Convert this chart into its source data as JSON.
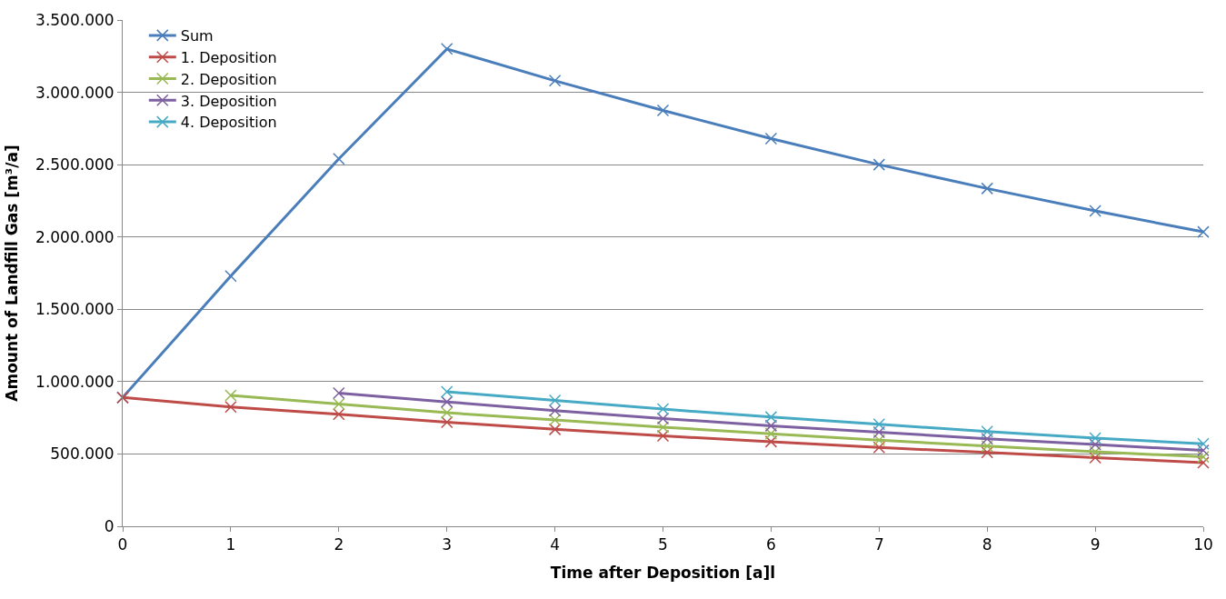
{
  "chart_data": {
    "type": "line",
    "xlabel": "Time after Deposition [a]l",
    "ylabel": "Amount of Landfill Gas [m³/a]",
    "x": [
      0,
      1,
      2,
      3,
      4,
      5,
      6,
      7,
      8,
      9,
      10
    ],
    "xlim": [
      0,
      10
    ],
    "xticks": [
      0,
      1,
      2,
      3,
      4,
      5,
      6,
      7,
      8,
      9,
      10
    ],
    "ylim": [
      0,
      3500000
    ],
    "yticks": [
      {
        "value": 0,
        "label": "0"
      },
      {
        "value": 500000,
        "label": "500.000"
      },
      {
        "value": 1000000,
        "label": "1.000.000"
      },
      {
        "value": 1500000,
        "label": "1.500.000"
      },
      {
        "value": 2000000,
        "label": "2.000.000"
      },
      {
        "value": 2500000,
        "label": "2.500.000"
      },
      {
        "value": 3000000,
        "label": "3.000.000"
      },
      {
        "value": 3500000,
        "label": "3.500.000"
      }
    ],
    "grid": "y",
    "legend": "top left",
    "marker": "cross",
    "line_style": "solid",
    "series": [
      {
        "name": "Sum",
        "color": "#4a7ebb",
        "values": [
          890000,
          1730000,
          2540000,
          3300000,
          3080000,
          2875000,
          2680000,
          2500000,
          2335000,
          2180000,
          2035000
        ]
      },
      {
        "name": "1. Deposition",
        "color": "#be4b48",
        "values": [
          890000,
          825000,
          775000,
          720000,
          670000,
          625000,
          585000,
          545000,
          510000,
          475000,
          440000
        ]
      },
      {
        "name": "2. Deposition",
        "color": "#98b954",
        "values": [
          null,
          905000,
          845000,
          785000,
          735000,
          685000,
          640000,
          595000,
          555000,
          515000,
          480000
        ]
      },
      {
        "name": "3. Deposition",
        "color": "#7d60a0",
        "values": [
          null,
          null,
          920000,
          860000,
          800000,
          745000,
          695000,
          650000,
          605000,
          565000,
          525000
        ]
      },
      {
        "name": "4. Deposition",
        "color": "#46aac5",
        "values": [
          null,
          null,
          null,
          930000,
          870000,
          810000,
          755000,
          705000,
          655000,
          610000,
          570000
        ]
      }
    ]
  }
}
